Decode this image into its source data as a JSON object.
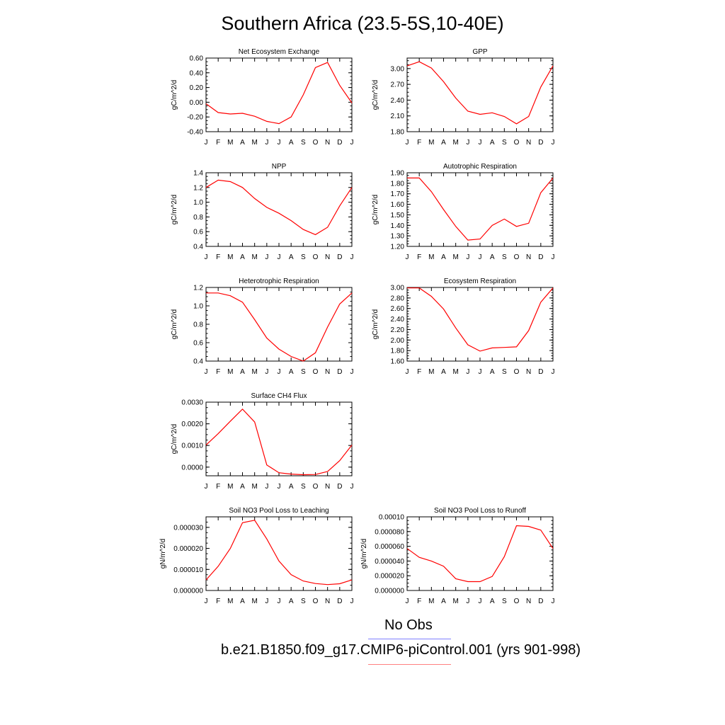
{
  "title": "Southern Africa (23.5-5S,10-40E)",
  "legend": {
    "entries": [
      {
        "label": "No Obs",
        "color": "#8080ff"
      },
      {
        "label": "b.e21.B1850.f09_g17.CMIP6-piControl.001 (yrs 901-998)",
        "color": "#ff8080"
      }
    ]
  },
  "line_color": "#ff0000",
  "chart_data": [
    {
      "type": "line",
      "title": "Net Ecosystem Exchange",
      "ylabel": "gC/m^2/d",
      "x": [
        "J",
        "F",
        "M",
        "A",
        "M",
        "J",
        "J",
        "A",
        "S",
        "O",
        "N",
        "D",
        "J"
      ],
      "ylim": [
        -0.4,
        0.6
      ],
      "yticks": [
        "-0.40",
        "-0.20",
        "0.00",
        "0.20",
        "0.40",
        "0.60"
      ],
      "values": [
        -0.02,
        -0.14,
        -0.16,
        -0.15,
        -0.19,
        -0.26,
        -0.29,
        -0.2,
        0.1,
        0.47,
        0.54,
        0.23,
        -0.01
      ]
    },
    {
      "type": "line",
      "title": "GPP",
      "ylabel": "gC/m^2/d",
      "x": [
        "J",
        "F",
        "M",
        "A",
        "M",
        "J",
        "J",
        "A",
        "S",
        "O",
        "N",
        "D",
        "J"
      ],
      "ylim": [
        1.8,
        3.2
      ],
      "yticks": [
        "1.80",
        "2.10",
        "2.40",
        "2.70",
        "3.00"
      ],
      "values": [
        3.05,
        3.13,
        3.01,
        2.75,
        2.44,
        2.19,
        2.13,
        2.16,
        2.09,
        1.95,
        2.09,
        2.65,
        3.05
      ]
    },
    {
      "type": "line",
      "title": "NPP",
      "ylabel": "gC/m^2/d",
      "x": [
        "J",
        "F",
        "M",
        "A",
        "M",
        "J",
        "J",
        "A",
        "S",
        "O",
        "N",
        "D",
        "J"
      ],
      "ylim": [
        0.4,
        1.4
      ],
      "yticks": [
        "0.4",
        "0.6",
        "0.8",
        "1.0",
        "1.2",
        "1.4"
      ],
      "values": [
        1.2,
        1.3,
        1.28,
        1.2,
        1.05,
        0.93,
        0.85,
        0.75,
        0.63,
        0.56,
        0.66,
        0.95,
        1.2
      ]
    },
    {
      "type": "line",
      "title": "Autotrophic Respiration",
      "ylabel": "gC/m^2/d",
      "x": [
        "J",
        "F",
        "M",
        "A",
        "M",
        "J",
        "J",
        "A",
        "S",
        "O",
        "N",
        "D",
        "J"
      ],
      "ylim": [
        1.2,
        1.9
      ],
      "yticks": [
        "1.20",
        "1.30",
        "1.40",
        "1.50",
        "1.60",
        "1.70",
        "1.80",
        "1.90"
      ],
      "values": [
        1.85,
        1.85,
        1.72,
        1.55,
        1.39,
        1.26,
        1.27,
        1.4,
        1.46,
        1.39,
        1.42,
        1.71,
        1.85
      ]
    },
    {
      "type": "line",
      "title": "Heterotrophic Respiration",
      "ylabel": "gC/m^2/d",
      "x": [
        "J",
        "F",
        "M",
        "A",
        "M",
        "J",
        "J",
        "A",
        "S",
        "O",
        "N",
        "D",
        "J"
      ],
      "ylim": [
        0.4,
        1.2
      ],
      "yticks": [
        "0.4",
        "0.6",
        "0.8",
        "1.0",
        "1.2"
      ],
      "values": [
        1.14,
        1.14,
        1.11,
        1.04,
        0.85,
        0.65,
        0.53,
        0.45,
        0.4,
        0.49,
        0.77,
        1.02,
        1.14
      ]
    },
    {
      "type": "line",
      "title": "Ecosystem Respiration",
      "ylabel": "gC/m^2/d",
      "x": [
        "J",
        "F",
        "M",
        "A",
        "M",
        "J",
        "J",
        "A",
        "S",
        "O",
        "N",
        "D",
        "J"
      ],
      "ylim": [
        1.6,
        3.0
      ],
      "yticks": [
        "1.60",
        "1.80",
        "2.00",
        "2.20",
        "2.40",
        "2.60",
        "2.80",
        "3.00"
      ],
      "values": [
        2.99,
        2.99,
        2.83,
        2.59,
        2.23,
        1.91,
        1.79,
        1.85,
        1.86,
        1.87,
        2.18,
        2.72,
        2.99
      ]
    },
    {
      "type": "line",
      "title": "Surface CH4 Flux",
      "ylabel": "gC/m^2/d",
      "x": [
        "J",
        "F",
        "M",
        "A",
        "M",
        "J",
        "J",
        "A",
        "S",
        "O",
        "N",
        "D",
        "J"
      ],
      "ylim": [
        -0.0004,
        0.003
      ],
      "yticks": [
        "0.0000",
        "0.0010",
        "0.0020",
        "0.0030"
      ],
      "values": [
        0.00102,
        0.00155,
        0.00212,
        0.00268,
        0.00208,
        0.0001,
        -0.00026,
        -0.00032,
        -0.00035,
        -0.00034,
        -0.0002,
        0.0003,
        0.00102
      ]
    },
    {
      "type": "line",
      "title": "Soil NO3 Pool Loss to Leaching",
      "ylabel": "gN/m^2/d",
      "x": [
        "J",
        "F",
        "M",
        "A",
        "M",
        "J",
        "J",
        "A",
        "S",
        "O",
        "N",
        "D",
        "J"
      ],
      "ylim": [
        0.0,
        3.5e-05
      ],
      "yticks": [
        "0.000000",
        "0.000010",
        "0.000020",
        "0.000030"
      ],
      "values": [
        5e-06,
        1.15e-05,
        2e-05,
        3.22e-05,
        3.34e-05,
        2.45e-05,
        1.4e-05,
        7.5e-06,
        4.5e-06,
        3.3e-06,
        2.8e-06,
        3.2e-06,
        5e-06
      ]
    },
    {
      "type": "line",
      "title": "Soil NO3 Pool Loss to Runoff",
      "ylabel": "gN/m^2/d",
      "x": [
        "J",
        "F",
        "M",
        "A",
        "M",
        "J",
        "J",
        "A",
        "S",
        "O",
        "N",
        "D",
        "J"
      ],
      "ylim": [
        0.0,
        0.0001
      ],
      "yticks": [
        "0.000000",
        "0.000020",
        "0.000040",
        "0.000060",
        "0.000080",
        "0.00010"
      ],
      "values": [
        5.7e-05,
        4.5e-05,
        4e-05,
        3.3e-05,
        1.6e-05,
        1.2e-05,
        1.2e-05,
        1.9e-05,
        4.6e-05,
        8.8e-05,
        8.7e-05,
        8.2e-05,
        5.7e-05
      ]
    }
  ]
}
